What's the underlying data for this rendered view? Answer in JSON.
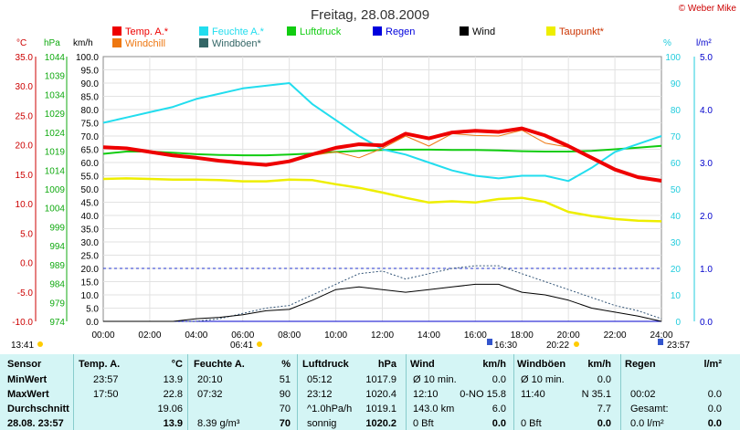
{
  "title": "Freitag, 28.08.2009",
  "copyright": "© Weber Mike",
  "legend": [
    {
      "name": "Temp. A.*",
      "color": "#ee0000"
    },
    {
      "name": "Feuchte A.*",
      "color": "#22ddee"
    },
    {
      "name": "Luftdruck",
      "color": "#11cc11"
    },
    {
      "name": "Regen",
      "color": "#0000dd"
    },
    {
      "name": "Wind",
      "color": "#000000"
    },
    {
      "name": "Taupunkt*",
      "color": "#eeee00"
    },
    {
      "name": "Windchill",
      "color": "#ee7711"
    },
    {
      "name": "Windböen*",
      "color": "#336666"
    }
  ],
  "axes": {
    "temp_unit": "°C",
    "press_unit": "hPa",
    "wind_unit": "km/h",
    "hum_unit": "%",
    "rain_unit": "l/m²",
    "temp_ticks": [
      "35.0",
      "30.0",
      "25.0",
      "20.0",
      "15.0",
      "10.0",
      "5.0",
      "0.0",
      "-5.0",
      "-10.0"
    ],
    "press_ticks": [
      "1044",
      "1039",
      "1034",
      "1029",
      "1024",
      "1019",
      "1014",
      "1009",
      "1004",
      "999",
      "994",
      "989",
      "984",
      "979",
      "974"
    ],
    "wind_ticks": [
      "100.0",
      "95.0",
      "90.0",
      "85.0",
      "80.0",
      "75.0",
      "70.0",
      "65.0",
      "60.0",
      "55.0",
      "50.0",
      "45.0",
      "40.0",
      "35.0",
      "30.0",
      "25.0",
      "20.0",
      "15.0",
      "10.0",
      "5.0",
      "0.0"
    ],
    "hum_ticks": [
      "100",
      "90",
      "80",
      "70",
      "60",
      "50",
      "40",
      "30",
      "20",
      "10",
      "0"
    ],
    "rain_ticks": [
      "5.0",
      "4.0",
      "3.0",
      "2.0",
      "1.0",
      "0.0"
    ],
    "x_ticks": [
      "00:00",
      "02:00",
      "04:00",
      "06:00",
      "08:00",
      "10:00",
      "12:00",
      "14:00",
      "16:00",
      "18:00",
      "20:00",
      "22:00",
      "24:00"
    ]
  },
  "events": [
    {
      "label": "13:41",
      "color": "#ffcc00"
    },
    {
      "label": "06:41",
      "color": "#ffcc00"
    },
    {
      "label": "16:30",
      "color": "#3355cc"
    },
    {
      "label": "20:22",
      "color": "#ffcc00"
    },
    {
      "label": "23:57",
      "color": "#3355cc"
    }
  ],
  "chart_data": {
    "type": "line",
    "title": "Freitag, 28.08.2009",
    "x": [
      0,
      1,
      2,
      3,
      4,
      5,
      6,
      7,
      8,
      9,
      10,
      11,
      12,
      13,
      14,
      15,
      16,
      17,
      18,
      19,
      20,
      21,
      22,
      23,
      24
    ],
    "xlim": [
      0,
      24
    ],
    "series": [
      {
        "name": "Temp. A.*",
        "axis": "°C",
        "ylim": [
          -10,
          35
        ],
        "values": [
          19.6,
          19.4,
          18.8,
          18.2,
          17.8,
          17.3,
          16.9,
          16.6,
          17.2,
          18.4,
          19.5,
          20.1,
          19.9,
          21.9,
          21.1,
          22.1,
          22.4,
          22.2,
          22.8,
          21.6,
          19.8,
          17.8,
          15.8,
          14.5,
          13.9
        ]
      },
      {
        "name": "Feuchte A.*",
        "axis": "%",
        "ylim": [
          0,
          100
        ],
        "values": [
          75,
          77,
          79,
          81,
          84,
          86,
          88,
          89,
          90,
          82,
          76,
          70,
          65,
          63,
          60,
          57,
          55,
          54,
          55,
          55,
          53,
          58,
          64,
          67,
          70
        ]
      },
      {
        "name": "Luftdruck",
        "axis": "hPa",
        "ylim": [
          974,
          1044
        ],
        "values": [
          1018.3,
          1018.9,
          1018.9,
          1018.6,
          1018.2,
          1018.0,
          1017.9,
          1017.9,
          1018.1,
          1018.4,
          1018.8,
          1019.1,
          1019.3,
          1019.4,
          1019.4,
          1019.3,
          1019.3,
          1019.2,
          1019.0,
          1018.9,
          1018.9,
          1019.1,
          1019.5,
          1019.9,
          1020.4
        ]
      },
      {
        "name": "Taupunkt*",
        "axis": "°C",
        "ylim": [
          -10,
          35
        ],
        "values": [
          14.2,
          14.3,
          14.2,
          14.1,
          14.1,
          14.0,
          13.8,
          13.8,
          14.1,
          14.0,
          13.3,
          12.7,
          11.9,
          11.0,
          10.2,
          10.4,
          10.2,
          10.8,
          11.0,
          10.3,
          8.6,
          7.9,
          7.4,
          7.1,
          7.0
        ]
      },
      {
        "name": "Windchill",
        "axis": "°C",
        "ylim": [
          -10,
          35
        ],
        "values": [
          19.6,
          19.4,
          18.8,
          18.2,
          17.8,
          17.3,
          16.9,
          16.6,
          17.2,
          18.2,
          18.8,
          17.8,
          19.4,
          21.5,
          19.8,
          21.9,
          21.6,
          21.5,
          22.5,
          20.3,
          19.6,
          17.8,
          15.8,
          14.5,
          13.9
        ]
      },
      {
        "name": "Wind",
        "axis": "km/h",
        "ylim": [
          0,
          100
        ],
        "values": [
          0,
          0,
          0,
          0,
          1,
          1.5,
          2.5,
          4,
          4.5,
          8,
          12,
          13,
          12,
          11,
          12,
          13,
          14,
          14,
          11,
          10,
          8,
          5,
          3.5,
          2,
          0
        ]
      },
      {
        "name": "Windböen*",
        "axis": "km/h",
        "ylim": [
          0,
          100
        ],
        "values": [
          0,
          0,
          0,
          0,
          0,
          1,
          3,
          5,
          6,
          10,
          14,
          18,
          19,
          16,
          18,
          20,
          21,
          21,
          18,
          15,
          12,
          9,
          6,
          4,
          1
        ]
      },
      {
        "name": "Regen",
        "axis": "l/m²",
        "ylim": [
          0,
          5
        ],
        "values": [
          0,
          0,
          0,
          0,
          0,
          0,
          0,
          0,
          0,
          0,
          0,
          0,
          0,
          0,
          0,
          0,
          0,
          0,
          0,
          0,
          0,
          0,
          0,
          0,
          0
        ]
      }
    ]
  },
  "table": {
    "headers": [
      "Sensor",
      "Temp. A.",
      "°C",
      "Feuchte A.",
      "%",
      "Luftdruck",
      "hPa",
      "Wind",
      "km/h",
      "Windböen",
      "km/h",
      "Regen",
      "l/m²"
    ],
    "rows": [
      {
        "label": "MinWert",
        "cells": [
          "23:57",
          "13.9",
          "20:10",
          "51",
          "05:12",
          "1017.9",
          "Ø 10 min.",
          "0.0",
          "Ø 10 min.",
          "0.0",
          "",
          ""
        ]
      },
      {
        "label": "MaxWert",
        "cells": [
          "17:50",
          "22.8",
          "07:32",
          "90",
          "23:12",
          "1020.4",
          "12:10",
          "0-NO 15.8",
          "11:40",
          "N 35.1",
          "00:02",
          "0.0"
        ]
      },
      {
        "label": "Durchschnitt",
        "cells": [
          "",
          "19.06",
          "",
          "70",
          "^1.0hPa/h",
          "1019.1",
          "143.0 km",
          "6.0",
          "",
          "7.7",
          "Gesamt:",
          "0.0"
        ]
      },
      {
        "label": "28.08. 23:57",
        "cells": [
          "",
          "13.9",
          "8.39 g/m³",
          "70",
          "sonnig",
          "1020.2",
          "0 Bft",
          "0.0",
          "0 Bft",
          "0.0",
          "0.0 l/m²",
          "0.0"
        ]
      }
    ]
  }
}
